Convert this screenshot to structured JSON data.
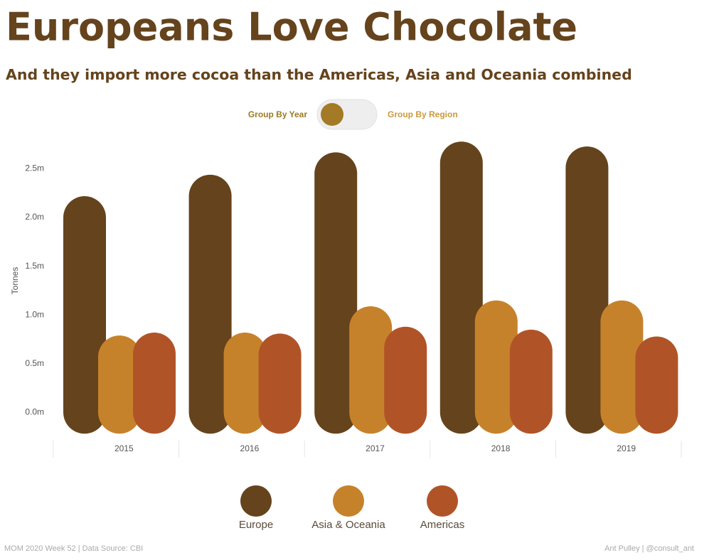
{
  "chart_data": {
    "type": "bar",
    "title": "Europeans Love Chocolate",
    "subtitle": "And they import more cocoa than the Americas, Asia and Oceania combined",
    "toggle_left": "Group By Year",
    "toggle_right": "Group By Region",
    "y_label": "Tonnes",
    "footer_left": "MOM 2020 Week 52 | Data Source: CBI",
    "footer_right": "Ant Pulley | @consult_ant",
    "categories": [
      "2015",
      "2016",
      "2017",
      "2018",
      "2019"
    ],
    "series": [
      {
        "name": "Europe",
        "color": "#65431c",
        "values": [
          2.0,
          2.22,
          2.45,
          2.56,
          2.51
        ]
      },
      {
        "name": "Asia & Oceania",
        "color": "#c6822b",
        "values": [
          0.57,
          0.6,
          0.87,
          0.93,
          0.93
        ]
      },
      {
        "name": "Americas",
        "color": "#b05428",
        "values": [
          0.6,
          0.59,
          0.66,
          0.63,
          0.56
        ]
      }
    ],
    "ylim": [
      -0.29,
      2.81
    ],
    "yticks": [
      {
        "value": 0,
        "label": "0.0m"
      },
      {
        "value": 0.5,
        "label": "0.5m"
      },
      {
        "value": 1,
        "label": "1.0m"
      },
      {
        "value": 1.5,
        "label": "1.5m"
      },
      {
        "value": 2,
        "label": "2.0m"
      },
      {
        "value": 2.5,
        "label": "2.5m"
      }
    ]
  }
}
